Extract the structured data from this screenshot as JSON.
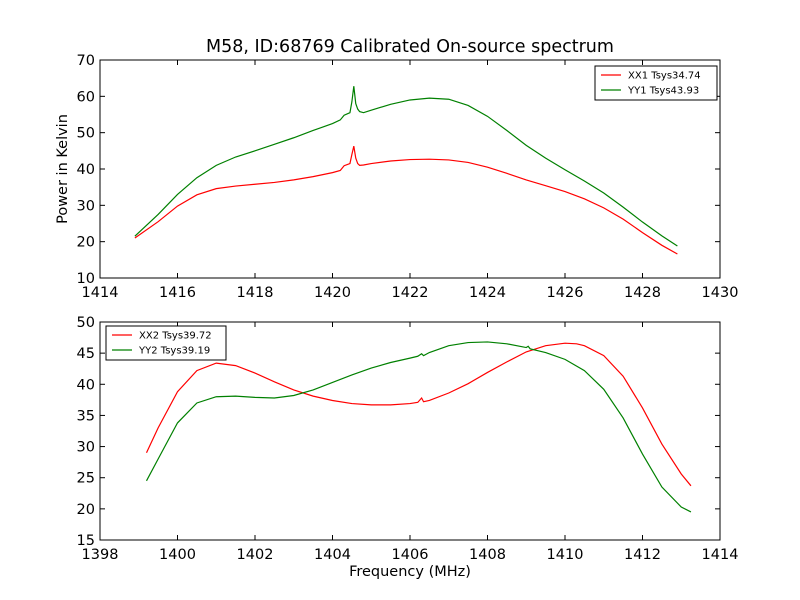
{
  "figure": {
    "title": "M58, ID:68769 Calibrated On-source spectrum",
    "xlabel": "Frequency (MHz)"
  },
  "chart_data": [
    {
      "type": "line",
      "title": "M58, ID:68769 Calibrated On-source spectrum",
      "xlabel": "",
      "ylabel": "Power in Kelvin",
      "xlim": [
        1414,
        1430
      ],
      "ylim": [
        10,
        70
      ],
      "xticks": [
        1414,
        1416,
        1418,
        1420,
        1422,
        1424,
        1426,
        1428,
        1430
      ],
      "yticks": [
        10,
        20,
        30,
        40,
        50,
        60,
        70
      ],
      "grid": false,
      "legend": "top-right",
      "series": [
        {
          "name": "XX1 Tsys34.74",
          "color": "#ff0000",
          "x": [
            1414.9,
            1415.5,
            1416.0,
            1416.5,
            1417.0,
            1417.5,
            1418.0,
            1418.5,
            1419.0,
            1419.5,
            1420.0,
            1420.2,
            1420.3,
            1420.45,
            1420.5,
            1420.55,
            1420.6,
            1420.65,
            1420.7,
            1420.8,
            1421.0,
            1421.5,
            1422.0,
            1422.5,
            1423.0,
            1423.5,
            1424.0,
            1424.5,
            1425.0,
            1425.5,
            1426.0,
            1426.5,
            1427.0,
            1427.5,
            1428.0,
            1428.5,
            1428.9
          ],
          "y": [
            21.0,
            25.5,
            29.8,
            32.9,
            34.6,
            35.3,
            35.8,
            36.3,
            37.0,
            37.9,
            39.0,
            39.6,
            40.9,
            41.5,
            44.0,
            46.3,
            43.0,
            41.5,
            41.0,
            41.1,
            41.5,
            42.2,
            42.6,
            42.7,
            42.5,
            41.8,
            40.5,
            38.8,
            37.0,
            35.4,
            33.8,
            31.8,
            29.3,
            26.2,
            22.5,
            19.0,
            16.6
          ]
        },
        {
          "name": "YY1 Tsys43.93",
          "color": "#008000",
          "x": [
            1414.9,
            1415.5,
            1416.0,
            1416.5,
            1417.0,
            1417.5,
            1418.0,
            1418.5,
            1419.0,
            1419.5,
            1420.0,
            1420.2,
            1420.3,
            1420.45,
            1420.5,
            1420.55,
            1420.6,
            1420.65,
            1420.7,
            1420.8,
            1421.0,
            1421.5,
            1422.0,
            1422.5,
            1423.0,
            1423.5,
            1424.0,
            1424.5,
            1425.0,
            1425.5,
            1426.0,
            1426.5,
            1427.0,
            1427.5,
            1428.0,
            1428.5,
            1428.9
          ],
          "y": [
            21.5,
            27.5,
            33.0,
            37.6,
            41.0,
            43.3,
            45.0,
            46.8,
            48.6,
            50.6,
            52.5,
            53.5,
            54.8,
            55.5,
            58.5,
            62.8,
            58.0,
            56.5,
            55.8,
            55.5,
            56.2,
            57.8,
            59.0,
            59.5,
            59.2,
            57.5,
            54.5,
            50.6,
            46.5,
            43.0,
            39.8,
            36.7,
            33.4,
            29.5,
            25.4,
            21.6,
            18.8
          ]
        }
      ]
    },
    {
      "type": "line",
      "title": "",
      "xlabel": "Frequency (MHz)",
      "ylabel": "",
      "xlim": [
        1398,
        1414
      ],
      "ylim": [
        15,
        50
      ],
      "xticks": [
        1398,
        1400,
        1402,
        1404,
        1406,
        1408,
        1410,
        1412,
        1414
      ],
      "yticks": [
        15,
        20,
        25,
        30,
        35,
        40,
        45,
        50
      ],
      "grid": false,
      "legend": "top-left",
      "series": [
        {
          "name": "XX2 Tsys39.72",
          "color": "#ff0000",
          "x": [
            1399.2,
            1399.5,
            1400.0,
            1400.5,
            1401.0,
            1401.5,
            1402.0,
            1402.5,
            1403.0,
            1403.5,
            1404.0,
            1404.5,
            1405.0,
            1405.5,
            1406.0,
            1406.2,
            1406.3,
            1406.35,
            1406.5,
            1407.0,
            1407.5,
            1408.0,
            1408.5,
            1409.0,
            1409.5,
            1410.0,
            1410.3,
            1410.5,
            1411.0,
            1411.5,
            1412.0,
            1412.5,
            1413.0,
            1413.25
          ],
          "y": [
            29.0,
            33.0,
            38.8,
            42.2,
            43.4,
            43.0,
            41.8,
            40.4,
            39.1,
            38.1,
            37.4,
            36.9,
            36.7,
            36.7,
            36.9,
            37.1,
            37.8,
            37.2,
            37.4,
            38.6,
            40.1,
            41.9,
            43.6,
            45.2,
            46.2,
            46.6,
            46.5,
            46.2,
            44.6,
            41.3,
            36.2,
            30.4,
            25.6,
            23.7
          ]
        },
        {
          "name": "YY2 Tsys39.19",
          "color": "#008000",
          "x": [
            1399.2,
            1399.5,
            1400.0,
            1400.5,
            1401.0,
            1401.5,
            1402.0,
            1402.5,
            1403.0,
            1403.5,
            1404.0,
            1404.5,
            1405.0,
            1405.5,
            1406.0,
            1406.2,
            1406.3,
            1406.35,
            1406.5,
            1407.0,
            1407.5,
            1408.0,
            1408.5,
            1409.0,
            1409.05,
            1409.1,
            1409.5,
            1410.0,
            1410.5,
            1411.0,
            1411.5,
            1412.0,
            1412.5,
            1413.0,
            1413.25
          ],
          "y": [
            24.5,
            28.0,
            33.8,
            37.0,
            38.0,
            38.1,
            37.9,
            37.8,
            38.2,
            39.1,
            40.3,
            41.5,
            42.6,
            43.5,
            44.2,
            44.5,
            44.9,
            44.6,
            45.1,
            46.2,
            46.7,
            46.8,
            46.5,
            45.9,
            46.1,
            45.7,
            45.1,
            44.0,
            42.2,
            39.2,
            34.6,
            28.8,
            23.5,
            20.3,
            19.5
          ]
        }
      ]
    }
  ]
}
